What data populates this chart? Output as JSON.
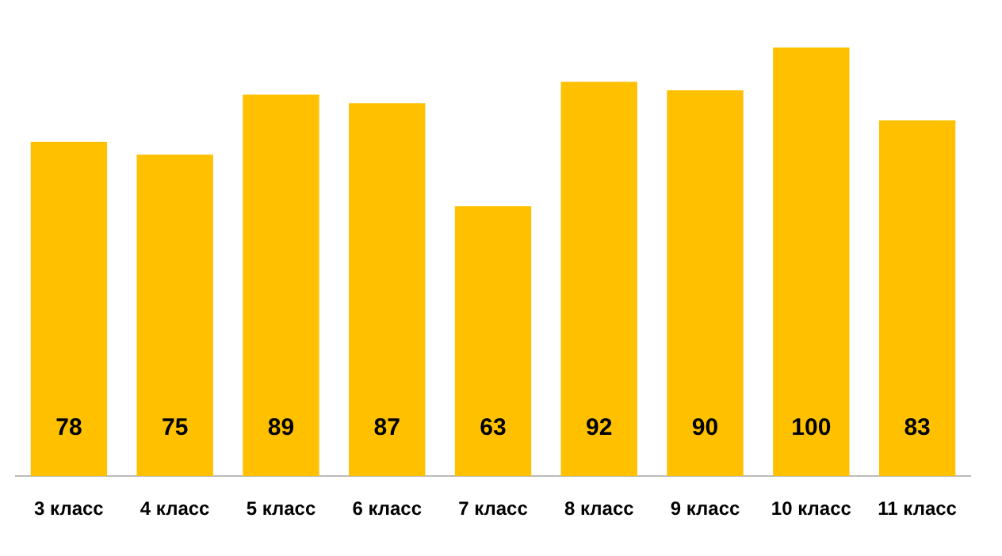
{
  "chart_data": {
    "type": "bar",
    "categories": [
      "3 класс",
      "4 класс",
      "5 класс",
      "6 класс",
      "7 класс",
      "8 класс",
      "9 класс",
      "10 класс",
      "11 класс"
    ],
    "values": [
      78,
      75,
      89,
      87,
      63,
      92,
      90,
      100,
      83
    ],
    "color": "#ffc000",
    "data_labels": true,
    "grid": false,
    "legend": false
  }
}
